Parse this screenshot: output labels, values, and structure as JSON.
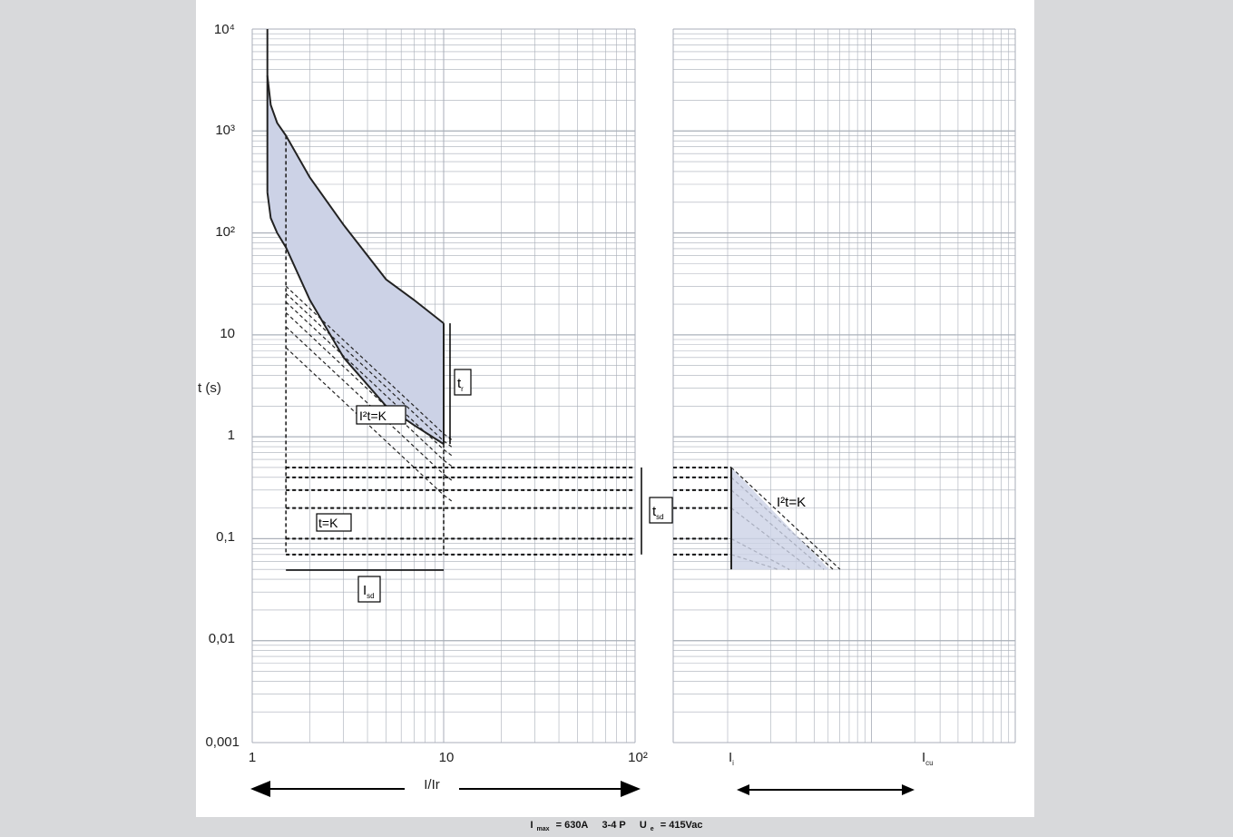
{
  "chart_data": {
    "type": "line",
    "title": "",
    "ylabel": "t (s)",
    "xlabel": "I/Ir",
    "y_scale": "log",
    "x_scale": "log",
    "ylim": [
      0.001,
      10000
    ],
    "xlim": [
      1,
      100
    ],
    "y_ticks": [
      "10⁴",
      "10³",
      "10²",
      "10",
      "1",
      "0,1",
      "0,01",
      "0,001"
    ],
    "x_ticks_left": [
      "1",
      "10",
      "10²"
    ],
    "x_ticks_right": [
      "I",
      "I"
    ],
    "x_ticks_right_sub": [
      "i",
      "cu"
    ],
    "grid": true,
    "series": [
      {
        "x": [
          1.2,
          1.25,
          1.35,
          1.5,
          2,
          3,
          5,
          7,
          10
        ],
        "y": [
          3500,
          1800,
          1200,
          900,
          350,
          120,
          35,
          22,
          13
        ]
      },
      {
        "x": [
          1.2,
          1.25,
          1.35,
          1.5,
          2,
          3,
          5,
          7,
          10
        ],
        "y": [
          250,
          140,
          100,
          72,
          22,
          6,
          2,
          1.3,
          0.85
        ]
      }
    ],
    "short_delay_levels_s": [
      0.5,
      0.4,
      0.3,
      0.2,
      0.1,
      0.07
    ],
    "annotations": {
      "tr": "t",
      "tr_sub": "r",
      "i2t_left": "I²t=K",
      "tk": "t=K",
      "isd": "I",
      "isd_sub": "sd",
      "tsd": "t",
      "tsd_sub": "sd",
      "i2t_right": "I²t=K"
    }
  },
  "footer": {
    "imax_label": "I",
    "imax_sub": "max",
    "imax_value": " = 630A",
    "poles": "3-4 P",
    "ue_label": "U",
    "ue_sub": "e",
    "ue_value": " = 415Vac"
  },
  "colors": {
    "band": "#ccd2e6",
    "grid": "#a8aeb8",
    "curve": "#222222"
  }
}
